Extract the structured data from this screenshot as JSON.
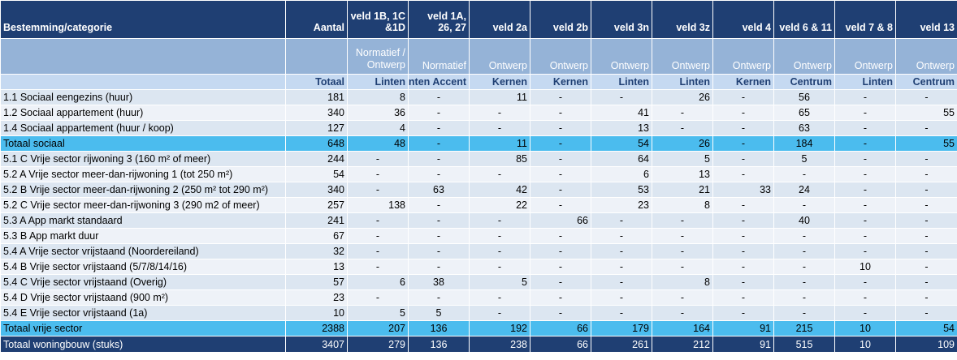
{
  "header": {
    "category_label": "Bestemming/categorie",
    "columns": [
      {
        "title": "Aantal",
        "sub": "",
        "area": "Totaal"
      },
      {
        "title": "veld 1B, 1C &1D",
        "sub": "Normatief / Ontwerp",
        "area": "Linten"
      },
      {
        "title": "veld 1A, 26, 27",
        "sub": "Normatief",
        "area": "nten Accent"
      },
      {
        "title": "veld 2a",
        "sub": "Ontwerp",
        "area": "Kernen"
      },
      {
        "title": "veld 2b",
        "sub": "Ontwerp",
        "area": "Kernen"
      },
      {
        "title": "veld 3n",
        "sub": "Ontwerp",
        "area": "Linten"
      },
      {
        "title": "veld 3z",
        "sub": "Ontwerp",
        "area": "Linten"
      },
      {
        "title": "veld 4",
        "sub": "Ontwerp",
        "area": "Kernen"
      },
      {
        "title": "veld 6 & 11",
        "sub": "Ontwerp",
        "area": "Centrum"
      },
      {
        "title": "veld 7 & 8",
        "sub": "Ontwerp",
        "area": "Linten"
      },
      {
        "title": "veld 13",
        "sub": "Ontwerp",
        "area": "Centrum"
      }
    ]
  },
  "rows": [
    {
      "label": "1.1 Sociaal eengezins (huur)",
      "values": [
        "181",
        "8",
        "-",
        "11",
        "-",
        "-",
        "26",
        "-",
        "56",
        "-",
        "-"
      ],
      "kind": "odd"
    },
    {
      "label": "1.2 Sociaal appartement (huur)",
      "values": [
        "340",
        "36",
        "-",
        "-",
        "-",
        "41",
        "-",
        "-",
        "65",
        "-",
        "55"
      ],
      "kind": "even"
    },
    {
      "label": "1.4 Sociaal appartement (huur / koop)",
      "values": [
        "127",
        "4",
        "-",
        "-",
        "-",
        "13",
        "-",
        "-",
        "63",
        "-",
        "-"
      ],
      "kind": "odd"
    },
    {
      "label": "Totaal sociaal",
      "values": [
        "648",
        "48",
        "-",
        "11",
        "-",
        "54",
        "26",
        "-",
        "184",
        "-",
        "55"
      ],
      "kind": "sub"
    },
    {
      "label": "5.1 C Vrije sector rijwoning 3 (160 m² of meer)",
      "values": [
        "244",
        "-",
        "-",
        "85",
        "-",
        "64",
        "5",
        "-",
        "5",
        "-",
        "-"
      ],
      "kind": "odd"
    },
    {
      "label": "5.2 A Vrije sector meer-dan-rijwoning 1 (tot 250 m²)",
      "values": [
        "54",
        "-",
        "-",
        "-",
        "-",
        "6",
        "13",
        "-",
        "-",
        "-",
        "-"
      ],
      "kind": "even"
    },
    {
      "label": "5.2 B Vrije sector meer-dan-rijwoning 2 (250 m² tot 290 m²)",
      "values": [
        "340",
        "-",
        "63",
        "42",
        "-",
        "53",
        "21",
        "33",
        "24",
        "-",
        "-"
      ],
      "kind": "odd"
    },
    {
      "label": "5.2 C Vrije sector meer-dan-rijwoning 3 (290 m2 of meer)",
      "values": [
        "257",
        "138",
        "-",
        "22",
        "-",
        "23",
        "8",
        "-",
        "-",
        "-",
        "-"
      ],
      "kind": "even"
    },
    {
      "label": "5.3 A App markt standaard",
      "values": [
        "241",
        "-",
        "-",
        "-",
        "66",
        "-",
        "-",
        "-",
        "40",
        "-",
        "-"
      ],
      "kind": "odd"
    },
    {
      "label": "5.3 B App markt duur",
      "values": [
        "67",
        "-",
        "-",
        "-",
        "-",
        "-",
        "-",
        "-",
        "-",
        "-",
        "-"
      ],
      "kind": "even"
    },
    {
      "label": "5.4 A Vrije sector vrijstaand (Noordereiland)",
      "values": [
        "32",
        "-",
        "-",
        "-",
        "-",
        "-",
        "-",
        "-",
        "-",
        "-",
        "-"
      ],
      "kind": "odd"
    },
    {
      "label": "5.4 B Vrije sector vrijstaand (5/7/8/14/16)",
      "values": [
        "13",
        "-",
        "-",
        "-",
        "-",
        "-",
        "-",
        "-",
        "-",
        "10",
        "-"
      ],
      "kind": "even"
    },
    {
      "label": "5.4 C Vrije sector vrijstaand (Overig)",
      "values": [
        "57",
        "6",
        "38",
        "5",
        "-",
        "-",
        "8",
        "-",
        "-",
        "-",
        "-"
      ],
      "kind": "odd"
    },
    {
      "label": "5.4 D Vrije sector vrijstaand (900 m²)",
      "values": [
        "23",
        "-",
        "-",
        "-",
        "-",
        "-",
        "-",
        "-",
        "-",
        "-",
        "-"
      ],
      "kind": "even"
    },
    {
      "label": "5.4 E Vrije sector vrijstaand (1a)",
      "values": [
        "10",
        "5",
        "5",
        "-",
        "-",
        "-",
        "-",
        "-",
        "-",
        "-",
        "-"
      ],
      "kind": "odd"
    },
    {
      "label": "Totaal vrije sector",
      "values": [
        "2388",
        "207",
        "136",
        "192",
        "66",
        "179",
        "164",
        "91",
        "215",
        "10",
        "54"
      ],
      "kind": "sub"
    },
    {
      "label": "Totaal woningbouw (stuks)",
      "values": [
        "3407",
        "279",
        "136",
        "238",
        "66",
        "261",
        "212",
        "91",
        "515",
        "10",
        "109"
      ],
      "kind": "total"
    }
  ]
}
